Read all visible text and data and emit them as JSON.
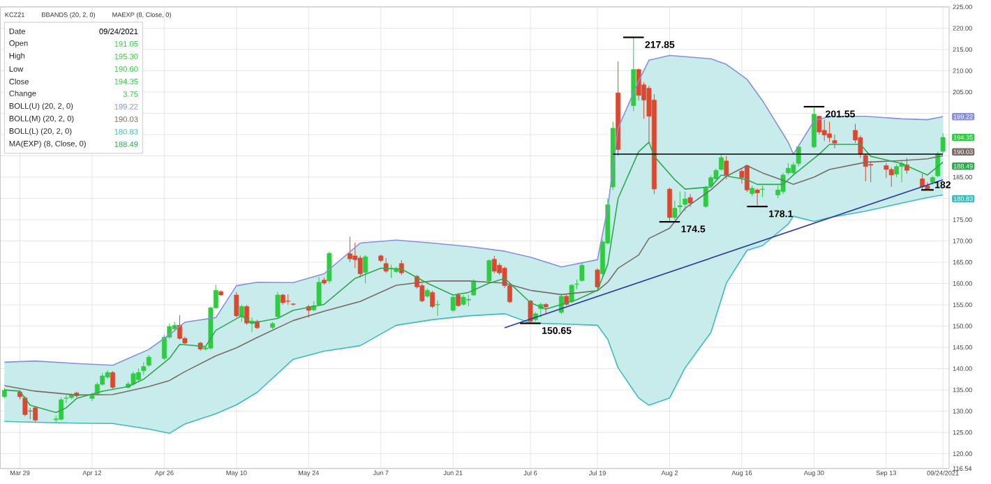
{
  "chart_data": {
    "type": "candlestick",
    "title": "KCZ21",
    "x": [
      "2021-03-26",
      "2021-03-29",
      "2021-03-30",
      "2021-03-31",
      "2021-04-01",
      "2021-04-05",
      "2021-04-06",
      "2021-04-07",
      "2021-04-08",
      "2021-04-09",
      "2021-04-12",
      "2021-04-13",
      "2021-04-14",
      "2021-04-15",
      "2021-04-16",
      "2021-04-19",
      "2021-04-20",
      "2021-04-21",
      "2021-04-22",
      "2021-04-23",
      "2021-04-26",
      "2021-04-27",
      "2021-04-28",
      "2021-04-29",
      "2021-04-30",
      "2021-05-03",
      "2021-05-04",
      "2021-05-05",
      "2021-05-06",
      "2021-05-07",
      "2021-05-10",
      "2021-05-11",
      "2021-05-12",
      "2021-05-13",
      "2021-05-14",
      "2021-05-17",
      "2021-05-18",
      "2021-05-19",
      "2021-05-20",
      "2021-05-21",
      "2021-05-24",
      "2021-05-25",
      "2021-05-26",
      "2021-05-27",
      "2021-05-28",
      "2021-06-01",
      "2021-06-02",
      "2021-06-03",
      "2021-06-04",
      "2021-06-07",
      "2021-06-08",
      "2021-06-09",
      "2021-06-10",
      "2021-06-11",
      "2021-06-14",
      "2021-06-15",
      "2021-06-16",
      "2021-06-17",
      "2021-06-18",
      "2021-06-21",
      "2021-06-22",
      "2021-06-23",
      "2021-06-24",
      "2021-06-25",
      "2021-06-28",
      "2021-06-29",
      "2021-06-30",
      "2021-07-01",
      "2021-07-02",
      "2021-07-06",
      "2021-07-07",
      "2021-07-08",
      "2021-07-09",
      "2021-07-12",
      "2021-07-13",
      "2021-07-14",
      "2021-07-15",
      "2021-07-16",
      "2021-07-19",
      "2021-07-20",
      "2021-07-21",
      "2021-07-22",
      "2021-07-23",
      "2021-07-26",
      "2021-07-27",
      "2021-07-28",
      "2021-07-29",
      "2021-07-30",
      "2021-08-02",
      "2021-08-03",
      "2021-08-04",
      "2021-08-05",
      "2021-08-06",
      "2021-08-09",
      "2021-08-10",
      "2021-08-11",
      "2021-08-12",
      "2021-08-13",
      "2021-08-16",
      "2021-08-17",
      "2021-08-18",
      "2021-08-19",
      "2021-08-20",
      "2021-08-23",
      "2021-08-24",
      "2021-08-25",
      "2021-08-26",
      "2021-08-27",
      "2021-08-30",
      "2021-08-31",
      "2021-09-01",
      "2021-09-02",
      "2021-09-03",
      "2021-09-07",
      "2021-09-08",
      "2021-09-09",
      "2021-09-10",
      "2021-09-13",
      "2021-09-14",
      "2021-09-15",
      "2021-09-16",
      "2021-09-17",
      "2021-09-20",
      "2021-09-21",
      "2021-09-22",
      "2021-09-23",
      "2021-09-24"
    ],
    "ohlc": [
      [
        133.4,
        135.5,
        133.0,
        134.9
      ],
      [
        134.5,
        135.0,
        132.8,
        133.4
      ],
      [
        133.1,
        133.5,
        128.8,
        129.2
      ],
      [
        130.1,
        130.8,
        128.1,
        130.0
      ],
      [
        130.8,
        131.2,
        127.5,
        127.9
      ],
      [
        128.0,
        129.0,
        127.2,
        128.2
      ],
      [
        128.1,
        133.2,
        127.8,
        132.7
      ],
      [
        133.0,
        133.8,
        131.9,
        133.1
      ],
      [
        133.2,
        134.2,
        132.8,
        133.8
      ],
      [
        134.3,
        134.6,
        133.2,
        133.6
      ],
      [
        133.0,
        134.3,
        132.4,
        133.6
      ],
      [
        134.1,
        136.8,
        133.8,
        136.3
      ],
      [
        136.3,
        139.0,
        136.0,
        138.3
      ],
      [
        138.0,
        139.6,
        137.6,
        139.1
      ],
      [
        139.1,
        139.4,
        135.3,
        135.6
      ],
      [
        135.6,
        137.0,
        135.3,
        136.4
      ],
      [
        136.4,
        139.3,
        136.0,
        138.8
      ],
      [
        137.4,
        140.0,
        136.8,
        139.1
      ],
      [
        139.5,
        141.5,
        138.5,
        140.5
      ],
      [
        140.8,
        143.2,
        140.4,
        142.7
      ],
      [
        142.4,
        148.0,
        142.0,
        147.4
      ],
      [
        147.4,
        150.6,
        147.0,
        149.9
      ],
      [
        149.3,
        151.0,
        148.7,
        150.2
      ],
      [
        150.2,
        152.5,
        146.8,
        147.1
      ],
      [
        147.1,
        147.5,
        145.7,
        146.0
      ],
      [
        146.0,
        146.3,
        144.2,
        144.6
      ],
      [
        144.6,
        145.3,
        144.3,
        144.9
      ],
      [
        144.8,
        154.6,
        144.5,
        154.3
      ],
      [
        154.3,
        159.7,
        154.0,
        158.4
      ],
      [
        158.1,
        158.4,
        157.1,
        157.3
      ],
      [
        157.3,
        158.0,
        152.0,
        152.4
      ],
      [
        152.2,
        155.0,
        151.0,
        154.6
      ],
      [
        154.6,
        155.0,
        150.3,
        150.7
      ],
      [
        150.6,
        152.0,
        148.6,
        151.2
      ],
      [
        151.1,
        151.5,
        149.3,
        149.6
      ],
      [
        149.7,
        151.0,
        149.3,
        150.6
      ],
      [
        152.2,
        158.0,
        151.8,
        157.3
      ],
      [
        157.3,
        157.6,
        155.0,
        155.5
      ],
      [
        155.9,
        157.5,
        155.0,
        155.8
      ],
      [
        155.2,
        155.4,
        154.8,
        155.1
      ],
      [
        154.6,
        155.0,
        152.0,
        153.7
      ],
      [
        153.8,
        155.9,
        153.5,
        154.8
      ],
      [
        155.0,
        161.5,
        154.8,
        160.3
      ],
      [
        160.8,
        161.4,
        159.7,
        160.1
      ],
      [
        160.6,
        167.5,
        160.0,
        167.1
      ],
      [
        167.0,
        171.0,
        165.0,
        165.8
      ],
      [
        166.5,
        169.6,
        163.6,
        165.6
      ],
      [
        166.0,
        166.6,
        161.4,
        162.3
      ],
      [
        162.6,
        166.7,
        160.0,
        166.3
      ],
      [
        166.5,
        166.8,
        165.0,
        165.4
      ],
      [
        164.7,
        166.0,
        162.5,
        162.9
      ],
      [
        163.4,
        164.4,
        161.3,
        163.5
      ],
      [
        162.8,
        164.0,
        162.5,
        163.5
      ],
      [
        164.7,
        165.5,
        162.0,
        162.5
      ],
      [
        161.7,
        162.0,
        158.8,
        159.2
      ],
      [
        159.5,
        160.0,
        155.6,
        155.9
      ],
      [
        157.0,
        158.8,
        156.7,
        158.4
      ],
      [
        157.9,
        158.3,
        154.2,
        154.6
      ],
      [
        155.0,
        156.0,
        152.4,
        155.1
      ],
      [
        153.7,
        157.2,
        153.3,
        156.8
      ],
      [
        157.3,
        157.8,
        154.5,
        154.8
      ],
      [
        155.1,
        157.3,
        154.8,
        156.8
      ],
      [
        156.1,
        157.3,
        154.7,
        156.3
      ],
      [
        157.3,
        161.0,
        157.0,
        160.6
      ],
      [
        160.6,
        165.7,
        160.2,
        165.4
      ],
      [
        165.7,
        166.5,
        162.4,
        162.9
      ],
      [
        164.3,
        164.8,
        162.0,
        162.5
      ],
      [
        163.6,
        164.0,
        159.0,
        159.5
      ],
      [
        159.5,
        160.0,
        155.4,
        155.7
      ],
      [
        155.9,
        156.2,
        150.65,
        151.1
      ],
      [
        151.5,
        153.3,
        151.0,
        152.9
      ],
      [
        154.1,
        155.5,
        152.0,
        155.1
      ],
      [
        155.1,
        155.4,
        153.0,
        154.5
      ],
      [
        153.2,
        157.3,
        152.8,
        157.0
      ],
      [
        157.0,
        157.4,
        154.8,
        155.1
      ],
      [
        155.7,
        159.9,
        155.4,
        159.6
      ],
      [
        159.8,
        160.9,
        158.6,
        159.9
      ],
      [
        160.7,
        164.8,
        160.4,
        164.3
      ],
      [
        163.2,
        163.6,
        158.8,
        159.2
      ],
      [
        162.3,
        170.3,
        161.8,
        169.8
      ],
      [
        169.5,
        180.0,
        169.2,
        178.5
      ],
      [
        182.7,
        198.0,
        182.0,
        196.5
      ],
      [
        204.8,
        212.2,
        190.0,
        191.5
      ],
      [
        201.8,
        217.85,
        200.5,
        210.3
      ],
      [
        210.3,
        210.5,
        203.0,
        204.2
      ],
      [
        206.7,
        207.3,
        198.7,
        203.1
      ],
      [
        205.9,
        206.5,
        193.0,
        199.3
      ],
      [
        203.1,
        204.5,
        181.0,
        182.2
      ],
      [
        182.2,
        182.5,
        174.5,
        175.5
      ],
      [
        175.5,
        179.5,
        175.0,
        177.7
      ],
      [
        178.0,
        181.6,
        176.6,
        178.3
      ],
      [
        178.6,
        181.6,
        177.0,
        179.9
      ],
      [
        180.2,
        181.0,
        178.0,
        178.9
      ],
      [
        178.1,
        183.0,
        177.8,
        182.4
      ],
      [
        182.9,
        185.4,
        182.5,
        184.9
      ],
      [
        184.6,
        187.0,
        184.0,
        186.6
      ],
      [
        186.8,
        190.3,
        186.5,
        189.6
      ],
      [
        188.8,
        190.0,
        184.5,
        185.5
      ],
      [
        186.4,
        187.0,
        183.5,
        184.9
      ],
      [
        187.7,
        188.0,
        181.5,
        182.0
      ],
      [
        181.1,
        183.0,
        180.5,
        182.4
      ],
      [
        182.0,
        182.3,
        178.1,
        181.3
      ],
      [
        182.1,
        183.0,
        180.3,
        182.2
      ],
      [
        180.8,
        183.0,
        180.0,
        182.0
      ],
      [
        181.6,
        186.0,
        181.0,
        185.5
      ],
      [
        186.0,
        188.3,
        185.5,
        187.1
      ],
      [
        186.0,
        188.5,
        185.5,
        187.9
      ],
      [
        188.2,
        192.5,
        187.5,
        192.1
      ],
      [
        192.1,
        201.55,
        191.8,
        199.8
      ],
      [
        199.3,
        199.5,
        195.0,
        195.6
      ],
      [
        196.0,
        198.5,
        193.5,
        194.9
      ],
      [
        195.2,
        198.0,
        193.2,
        194.3
      ],
      [
        193.6,
        195.0,
        191.8,
        193.0
      ],
      [
        196.0,
        197.5,
        193.0,
        193.7
      ],
      [
        194.3,
        194.8,
        189.5,
        190.4
      ],
      [
        190.1,
        190.5,
        184.0,
        187.5
      ],
      [
        188.0,
        188.8,
        183.8,
        187.8
      ],
      [
        187.7,
        188.3,
        184.8,
        186.8
      ],
      [
        186.8,
        187.3,
        182.7,
        185.5
      ],
      [
        185.7,
        188.0,
        185.0,
        187.5
      ],
      [
        187.5,
        188.8,
        183.8,
        188.2
      ],
      [
        187.9,
        189.5,
        185.8,
        186.6
      ],
      [
        184.6,
        185.8,
        182.2,
        182.7
      ],
      [
        183.0,
        183.8,
        182.0,
        182.2
      ],
      [
        183.8,
        185.3,
        183.3,
        184.9
      ],
      [
        185.3,
        191.0,
        185.0,
        190.4
      ],
      [
        191.05,
        195.3,
        190.6,
        194.35
      ]
    ],
    "colors": [
      "#2ecc40",
      "#d9482f",
      "#d9482f",
      "#d9482f",
      "#d9482f",
      "#2ecc40",
      "#2ecc40",
      "#2ecc40",
      "#2ecc40",
      "#d9482f",
      "#2ecc40",
      "#2ecc40",
      "#2ecc40",
      "#2ecc40",
      "#d9482f",
      "#2ecc40",
      "#2ecc40",
      "#2ecc40",
      "#2ecc40",
      "#2ecc40",
      "#2ecc40",
      "#2ecc40",
      "#2ecc40",
      "#d9482f",
      "#d9482f",
      "#d9482f",
      "#2ecc40",
      "#2ecc40",
      "#2ecc40",
      "#d9482f",
      "#d9482f",
      "#2ecc40",
      "#d9482f",
      "#2ecc40",
      "#d9482f",
      "#2ecc40",
      "#2ecc40",
      "#d9482f",
      "#d9482f",
      "#d9482f",
      "#d9482f",
      "#2ecc40",
      "#2ecc40",
      "#d9482f",
      "#2ecc40",
      "#d9482f",
      "#d9482f",
      "#d9482f",
      "#2ecc40",
      "#d9482f",
      "#d9482f",
      "#2ecc40",
      "#2ecc40",
      "#d9482f",
      "#d9482f",
      "#d9482f",
      "#2ecc40",
      "#d9482f",
      "#2ecc40",
      "#2ecc40",
      "#d9482f",
      "#2ecc40",
      "#2ecc40",
      "#2ecc40",
      "#2ecc40",
      "#d9482f",
      "#d9482f",
      "#d9482f",
      "#d9482f",
      "#d9482f",
      "#2ecc40",
      "#2ecc40",
      "#d9482f",
      "#2ecc40",
      "#d9482f",
      "#2ecc40",
      "#2ecc40",
      "#2ecc40",
      "#d9482f",
      "#2ecc40",
      "#2ecc40",
      "#2ecc40",
      "#d9482f",
      "#2ecc40",
      "#d9482f",
      "#d9482f",
      "#d9482f",
      "#d9482f",
      "#d9482f",
      "#2ecc40",
      "#2ecc40",
      "#2ecc40",
      "#d9482f",
      "#2ecc40",
      "#2ecc40",
      "#2ecc40",
      "#2ecc40",
      "#d9482f",
      "#d9482f",
      "#d9482f",
      "#2ecc40",
      "#d9482f",
      "#2ecc40",
      "#2ecc40",
      "#2ecc40",
      "#2ecc40",
      "#2ecc40",
      "#2ecc40",
      "#2ecc40",
      "#d9482f",
      "#d9482f",
      "#d9482f",
      "#d9482f",
      "#d9482f",
      "#d9482f",
      "#d9482f",
      "#d9482f",
      "#d9482f",
      "#d9482f",
      "#2ecc40",
      "#2ecc40",
      "#d9482f",
      "#d9482f",
      "#d9482f",
      "#2ecc40",
      "#2ecc40",
      "#2ecc40"
    ],
    "series": [
      {
        "type": "line",
        "color": "#8b8ed9",
        "x": [
          "2021-03-26",
          "2021-04-01",
          "2021-04-09",
          "2021-04-16",
          "2021-04-23",
          "2021-04-27",
          "2021-04-30",
          "2021-05-06",
          "2021-05-10",
          "2021-05-14",
          "2021-05-21",
          "2021-05-27",
          "2021-06-03",
          "2021-06-10",
          "2021-06-17",
          "2021-06-24",
          "2021-07-01",
          "2021-07-06",
          "2021-07-12",
          "2021-07-19",
          "2021-07-21",
          "2021-07-23",
          "2021-07-27",
          "2021-07-29",
          "2021-08-02",
          "2021-08-05",
          "2021-08-10",
          "2021-08-13",
          "2021-08-17",
          "2021-08-20",
          "2021-08-25",
          "2021-08-26",
          "2021-08-30",
          "2021-09-02",
          "2021-09-09",
          "2021-09-16",
          "2021-09-21",
          "2021-09-24"
        ],
        "values": [
          141.5,
          141.8,
          141.2,
          140.8,
          144.5,
          148,
          150.9,
          152,
          159.5,
          160.3,
          160.2,
          162.3,
          169.5,
          170.2,
          169.5,
          168.7,
          167.6,
          166.2,
          163.9,
          165.6,
          177.8,
          196.5,
          207.6,
          212.5,
          213.6,
          213.3,
          212.8,
          211.5,
          208,
          203,
          193.2,
          190.4,
          198.2,
          199.3,
          199.3,
          198.7,
          198.5,
          199.22
        ]
      },
      {
        "type": "line",
        "color": "#7a6b68",
        "x": [
          "2021-03-26",
          "2021-04-01",
          "2021-04-09",
          "2021-04-16",
          "2021-04-23",
          "2021-04-27",
          "2021-04-30",
          "2021-05-06",
          "2021-05-10",
          "2021-05-14",
          "2021-05-21",
          "2021-05-27",
          "2021-06-03",
          "2021-06-10",
          "2021-06-17",
          "2021-06-24",
          "2021-07-01",
          "2021-07-06",
          "2021-07-12",
          "2021-07-19",
          "2021-07-21",
          "2021-07-23",
          "2021-07-27",
          "2021-07-29",
          "2021-08-02",
          "2021-08-05",
          "2021-08-10",
          "2021-08-13",
          "2021-08-17",
          "2021-08-20",
          "2021-08-25",
          "2021-08-26",
          "2021-08-30",
          "2021-09-02",
          "2021-09-09",
          "2021-09-16",
          "2021-09-21",
          "2021-09-24"
        ],
        "values": [
          136,
          134.7,
          133.8,
          133.9,
          135.8,
          137.2,
          139.3,
          143,
          144.9,
          147.3,
          151.3,
          153.5,
          155.8,
          159.6,
          160.6,
          160.6,
          160.1,
          158.4,
          157.4,
          158.3,
          160.3,
          163.6,
          166.7,
          170.6,
          173,
          177.7,
          182,
          185.2,
          187.7,
          186,
          183.8,
          183.3,
          185,
          186.8,
          188.5,
          188.9,
          189.3,
          190.03
        ],
        "lower": [
          127.6,
          127.4,
          127.2,
          127.1,
          125.8,
          124.8,
          127,
          129.4,
          131.5,
          134.4,
          142.2,
          144.1,
          145.4,
          150.2,
          151.5,
          152.4,
          152.9,
          150.7,
          150.5,
          150.2,
          146.9,
          140.2,
          133.1,
          131.4,
          133.1,
          140.2,
          148.5,
          160.1,
          167.8,
          168.9,
          174,
          175.8,
          174.6,
          175.5,
          177,
          178.9,
          180.2,
          180.83
        ],
        "upper": [
          141.5,
          141.8,
          141.2,
          140.8,
          144.5,
          148,
          150.9,
          152,
          159.5,
          160.3,
          160.2,
          162.3,
          169.5,
          170.2,
          169.5,
          168.7,
          167.6,
          166.2,
          163.9,
          165.6,
          177.8,
          196.5,
          207.6,
          212.5,
          213.6,
          213.3,
          212.8,
          211.5,
          208,
          203,
          193.2,
          190.4,
          198.2,
          199.3,
          199.3,
          198.7,
          198.5,
          199.22
        ]
      },
      {
        "type": "line",
        "color": "#3cbcbc",
        "x": [
          "2021-03-26",
          "2021-04-01",
          "2021-04-09",
          "2021-04-16",
          "2021-04-23",
          "2021-04-27",
          "2021-04-30",
          "2021-05-06",
          "2021-05-10",
          "2021-05-14",
          "2021-05-21",
          "2021-05-27",
          "2021-06-03",
          "2021-06-10",
          "2021-06-17",
          "2021-06-24",
          "2021-07-01",
          "2021-07-06",
          "2021-07-12",
          "2021-07-19",
          "2021-07-21",
          "2021-07-23",
          "2021-07-27",
          "2021-07-29",
          "2021-08-02",
          "2021-08-05",
          "2021-08-10",
          "2021-08-13",
          "2021-08-17",
          "2021-08-20",
          "2021-08-25",
          "2021-08-26",
          "2021-08-30",
          "2021-09-02",
          "2021-09-09",
          "2021-09-16",
          "2021-09-21",
          "2021-09-24"
        ],
        "values": [
          127.6,
          127.4,
          127.2,
          127.1,
          125.8,
          124.8,
          127,
          129.4,
          131.5,
          134.4,
          142.2,
          144.1,
          145.4,
          150.2,
          151.5,
          152.4,
          152.9,
          150.7,
          150.5,
          150.2,
          146.9,
          140.2,
          133.1,
          131.4,
          133.1,
          140.2,
          148.5,
          160.1,
          167.8,
          168.9,
          174,
          175.8,
          174.6,
          175.5,
          177,
          178.9,
          180.2,
          180.83
        ]
      },
      {
        "type": "line",
        "color": "#2ea84f",
        "x": [
          "2021-03-26",
          "2021-03-29",
          "2021-03-31",
          "2021-04-05",
          "2021-04-07",
          "2021-04-09",
          "2021-04-14",
          "2021-04-19",
          "2021-04-22",
          "2021-04-27",
          "2021-04-29",
          "2021-05-04",
          "2021-05-06",
          "2021-05-11",
          "2021-05-13",
          "2021-05-18",
          "2021-05-21",
          "2021-05-27",
          "2021-06-02",
          "2021-06-07",
          "2021-06-11",
          "2021-06-16",
          "2021-06-21",
          "2021-06-24",
          "2021-06-28",
          "2021-07-01",
          "2021-07-02",
          "2021-07-06",
          "2021-07-09",
          "2021-07-15",
          "2021-07-19",
          "2021-07-21",
          "2021-07-22",
          "2021-07-23",
          "2021-07-27",
          "2021-07-29",
          "2021-07-30",
          "2021-08-03",
          "2021-08-05",
          "2021-08-10",
          "2021-08-12",
          "2021-08-17",
          "2021-08-19",
          "2021-08-24",
          "2021-08-26",
          "2021-08-31",
          "2021-09-02",
          "2021-09-08",
          "2021-09-10",
          "2021-09-16",
          "2021-09-21",
          "2021-09-24"
        ],
        "values": [
          135,
          134.7,
          131.4,
          129.7,
          130.8,
          133,
          134.7,
          135.8,
          137.5,
          142.4,
          145.7,
          145.2,
          149,
          152.4,
          150.7,
          151.8,
          153.7,
          155.1,
          161.2,
          163.6,
          163.4,
          160.1,
          157.3,
          157.9,
          160.1,
          161.2,
          160.1,
          155.5,
          154,
          156.2,
          158.4,
          164.5,
          172.2,
          180,
          191,
          193.2,
          189.9,
          184.4,
          182.2,
          182.7,
          185.5,
          184.4,
          183.3,
          183.3,
          185.5,
          190.4,
          192.7,
          192.7,
          189.9,
          188.2,
          185.5,
          188.49
        ]
      },
      {
        "type": "line",
        "color": "#2b3a9e",
        "x": [
          "2021-07-01",
          "2021-09-24"
        ],
        "values": [
          149.6,
          184.4
        ]
      },
      {
        "type": "line",
        "color": "#000000",
        "x": [
          "2021-07-22",
          "2021-09-24"
        ],
        "values": [
          190.4,
          190.4
        ]
      }
    ],
    "annotations": [
      "BBANDS (20, 2, 0)",
      "MAEXP (8, Close, 0)",
      "Date",
      "09/24/2021",
      "Open",
      "191.05",
      "High",
      "195.30",
      "Low",
      "190.60",
      "Close",
      "194.35",
      "Change",
      "3.75",
      "BOLL(U) (20, 2, 0)",
      "199.22",
      "BOLL(M) (20, 2, 0)",
      "190.03",
      "BOLL(L) (20, 2, 0)",
      "180.83",
      "MA(EXP) (8, Close, 0)",
      "188.49",
      {
        "text": "217.85",
        "x": "2021-07-26",
        "y": 217.85
      },
      {
        "text": "150.65",
        "x": "2021-07-06",
        "y": 150.65
      },
      {
        "text": "174.5",
        "x": "2021-08-02",
        "y": 174.5
      },
      {
        "text": "178.1",
        "x": "2021-08-19",
        "y": 178.1
      },
      {
        "text": "201.55",
        "x": "2021-08-30",
        "y": 201.55
      },
      {
        "text": "182",
        "x": "2021-09-21",
        "y": 182
      },
      {
        "text": "199.22",
        "x": "2021-09-24",
        "y": 199.22
      },
      {
        "text": "194.35",
        "x": "2021-09-24",
        "y": 194.35
      },
      {
        "text": "190.03",
        "x": "2021-09-24",
        "y": 190.03
      },
      {
        "text": "188.49",
        "x": "2021-09-24",
        "y": 188.49
      },
      {
        "text": "180.83",
        "x": "2021-09-24",
        "y": 180.83
      }
    ],
    "xlim": [
      "2021-03-26",
      "2021-09-24"
    ],
    "xticks": [
      {
        "value": "2021-03-29",
        "label": "Mar 29"
      },
      {
        "value": "2021-04-12",
        "label": "Apr 12"
      },
      {
        "value": "2021-04-26",
        "label": "Apr 26"
      },
      {
        "value": "2021-05-10",
        "label": "May 10"
      },
      {
        "value": "2021-05-24",
        "label": "May 24"
      },
      {
        "value": "2021-06-07",
        "label": "Jun 7"
      },
      {
        "value": "2021-06-21",
        "label": "Jun 21"
      },
      {
        "value": "2021-07-06",
        "label": "Jul 6"
      },
      {
        "value": "2021-07-19",
        "label": "Jul 19"
      },
      {
        "value": "2021-08-02",
        "label": "Aug 2"
      },
      {
        "value": "2021-08-16",
        "label": "Aug 16"
      },
      {
        "value": "2021-08-30",
        "label": "Aug 30"
      },
      {
        "value": "2021-09-13",
        "label": "Sep 13"
      },
      {
        "value": "2021-09-24",
        "label": "09/24/2021"
      }
    ],
    "ylim": [
      116.54,
      225
    ],
    "yticks": [
      116.54,
      {
        "value": 120,
        "label": "120.00"
      },
      {
        "value": 125,
        "label": "125.00"
      },
      {
        "value": 130,
        "label": "130.00"
      },
      {
        "value": 135,
        "label": "135.00"
      },
      {
        "value": 140,
        "label": "140.00"
      },
      {
        "value": 145,
        "label": "145.00"
      },
      {
        "value": 150,
        "label": "150.00"
      },
      {
        "value": 155,
        "label": "155.00"
      },
      {
        "value": 160,
        "label": "160.00"
      },
      {
        "value": 165,
        "label": "165.00"
      },
      {
        "value": 170,
        "label": "170.00"
      },
      {
        "value": 175,
        "label": "175.00"
      },
      {
        "value": 180,
        "label": null
      },
      {
        "value": 185,
        "label": "185.00"
      },
      {
        "value": 190,
        "label": null
      },
      {
        "value": 195,
        "label": null
      },
      {
        "value": 200,
        "label": null
      },
      {
        "value": 205,
        "label": "205.00"
      },
      {
        "value": 210,
        "label": "210.00"
      },
      {
        "value": 215,
        "label": "215.00"
      },
      {
        "value": 220,
        "label": "220.00"
      },
      {
        "value": 225,
        "label": "225.00"
      }
    ],
    "grid": true
  }
}
